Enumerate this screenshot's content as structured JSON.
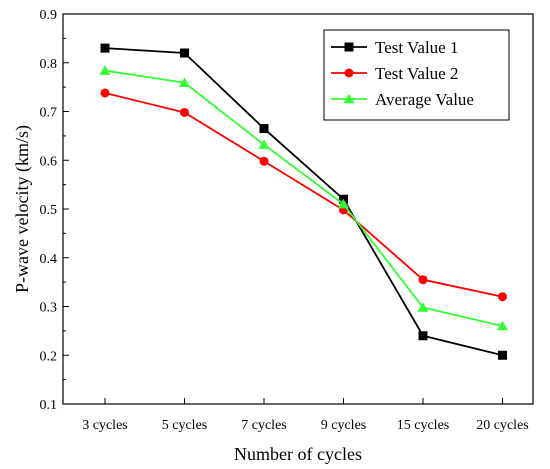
{
  "chart_data": {
    "type": "line",
    "title": "",
    "xlabel": "Number of cycles",
    "ylabel": "P-wave velocity (km/s)",
    "categories": [
      "3 cycles",
      "5 cycles",
      "7 cycles",
      "9 cycles",
      "15 cycles",
      "20 cycles"
    ],
    "ylim": [
      0.1,
      0.9
    ],
    "yticks": [
      0.1,
      0.2,
      0.3,
      0.4,
      0.5,
      0.6,
      0.7,
      0.8,
      0.9
    ],
    "ytick_labels": [
      "0.1",
      "0.2",
      "0.3",
      "0.4",
      "0.5",
      "0.6",
      "0.7",
      "0.8",
      "0.9"
    ],
    "grid": false,
    "legend_position": "top-right",
    "series": [
      {
        "name": "Test Value 1",
        "values": [
          0.83,
          0.82,
          0.665,
          0.52,
          0.24,
          0.2
        ],
        "color": "#000000",
        "marker": "square"
      },
      {
        "name": "Test Value 2",
        "values": [
          0.738,
          0.698,
          0.598,
          0.498,
          0.355,
          0.32
        ],
        "color": "#ff0000",
        "marker": "circle"
      },
      {
        "name": "Average Value",
        "values": [
          0.784,
          0.759,
          0.632,
          0.51,
          0.298,
          0.26
        ],
        "color": "#33ff33",
        "marker": "triangle"
      }
    ]
  }
}
